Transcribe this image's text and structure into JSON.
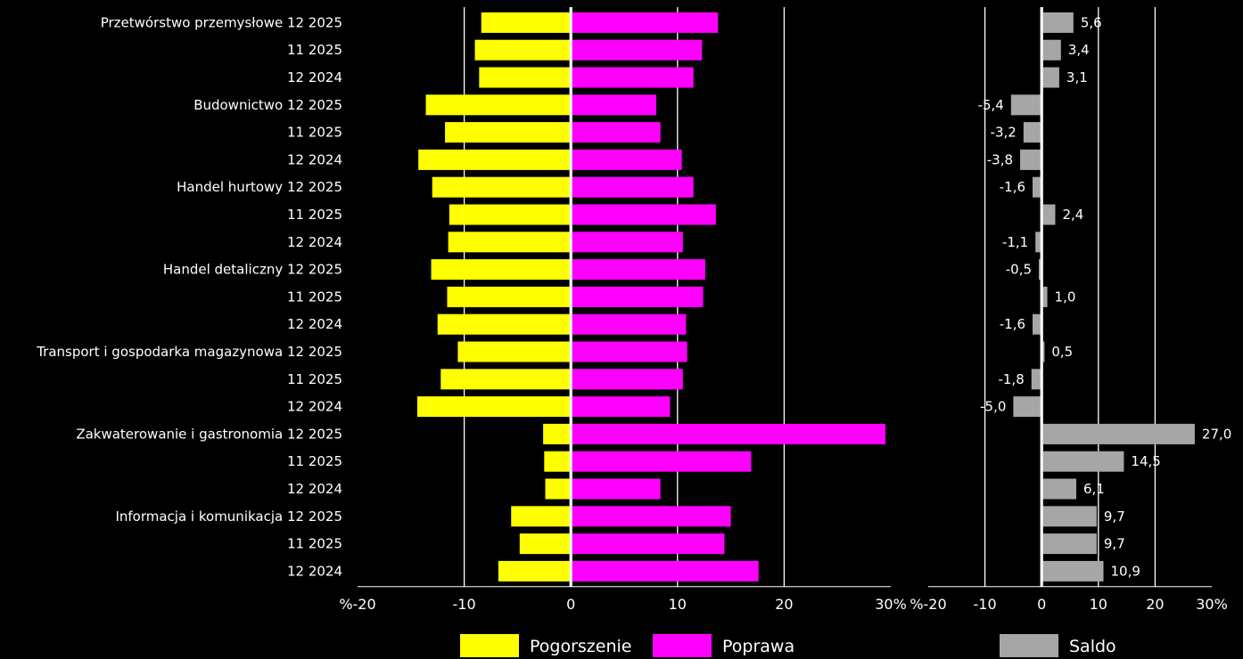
{
  "chart_data": [
    {
      "type": "bar",
      "orientation": "horizontal",
      "stacked": "diverging",
      "xlim": [
        -20,
        30
      ],
      "x_ticks": [
        "%-20",
        "-10",
        "0",
        "10",
        "20",
        "30%"
      ],
      "grid": true,
      "legend_position": "bottom",
      "categories": [
        {
          "group": "Przetwórstwo przemysłowe",
          "period": "12 2025"
        },
        {
          "group": "",
          "period": "11 2025"
        },
        {
          "group": "",
          "period": "12 2024"
        },
        {
          "group": "Budownictwo",
          "period": "12 2025"
        },
        {
          "group": "",
          "period": "11 2025"
        },
        {
          "group": "",
          "period": "12 2024"
        },
        {
          "group": "Handel hurtowy",
          "period": "12 2025"
        },
        {
          "group": "",
          "period": "11 2025"
        },
        {
          "group": "",
          "period": "12 2024"
        },
        {
          "group": "Handel detaliczny",
          "period": "12 2025"
        },
        {
          "group": "",
          "period": "11 2025"
        },
        {
          "group": "",
          "period": "12 2024"
        },
        {
          "group": "Transport i gospodarka magazynowa",
          "period": "12 2025"
        },
        {
          "group": "",
          "period": "11 2025"
        },
        {
          "group": "",
          "period": "12 2024"
        },
        {
          "group": "Zakwaterowanie i gastronomia",
          "period": "12 2025"
        },
        {
          "group": "",
          "period": "11 2025"
        },
        {
          "group": "",
          "period": "12 2024"
        },
        {
          "group": "Informacja i komunikacja",
          "period": "12 2025"
        },
        {
          "group": "",
          "period": "11 2025"
        },
        {
          "group": "",
          "period": "12 2024"
        }
      ],
      "series": [
        {
          "name": "Pogorszenie",
          "color": "#ffff00",
          "values": [
            -8.4,
            -9.0,
            -8.6,
            -13.6,
            -11.8,
            -14.3,
            -13.0,
            -11.4,
            -11.5,
            -13.1,
            -11.6,
            -12.5,
            -10.6,
            -12.2,
            -14.4,
            -2.6,
            -2.5,
            -2.4,
            -5.6,
            -4.8,
            -6.8
          ]
        },
        {
          "name": "Poprawa",
          "color": "#ff00ff",
          "values": [
            13.8,
            12.3,
            11.5,
            8.0,
            8.4,
            10.4,
            11.5,
            13.6,
            10.5,
            12.6,
            12.4,
            10.8,
            10.9,
            10.5,
            9.3,
            29.5,
            16.9,
            8.4,
            15.0,
            14.4,
            17.6
          ]
        }
      ]
    },
    {
      "type": "bar",
      "orientation": "horizontal",
      "xlim": [
        -20,
        30
      ],
      "x_ticks": [
        "%-20",
        "-10",
        "0",
        "10",
        "20",
        "30%"
      ],
      "grid": true,
      "series": [
        {
          "name": "Saldo",
          "color": "#a6a6a6",
          "values": [
            5.6,
            3.4,
            3.1,
            -5.4,
            -3.2,
            -3.8,
            -1.6,
            2.4,
            -1.1,
            -0.5,
            1.0,
            -1.6,
            0.5,
            -1.8,
            -5.0,
            27.0,
            14.5,
            6.1,
            9.7,
            9.7,
            10.9
          ],
          "labels": [
            "5,6",
            "3,4",
            "3,1",
            "-5,4",
            "-3,2",
            "-3,8",
            "-1,6",
            "2,4",
            "-1,1",
            "-0,5",
            "1,0",
            "-1,6",
            "0,5",
            "-1,8",
            "-5,0",
            "27,0",
            "14,5",
            "6,1",
            "9,7",
            "9,7",
            "10,9"
          ]
        }
      ]
    }
  ],
  "legend": [
    {
      "label": "Pogorszenie",
      "color": "#ffff00"
    },
    {
      "label": "Poprawa",
      "color": "#ff00ff"
    },
    {
      "label": "Saldo",
      "color": "#a6a6a6"
    }
  ]
}
